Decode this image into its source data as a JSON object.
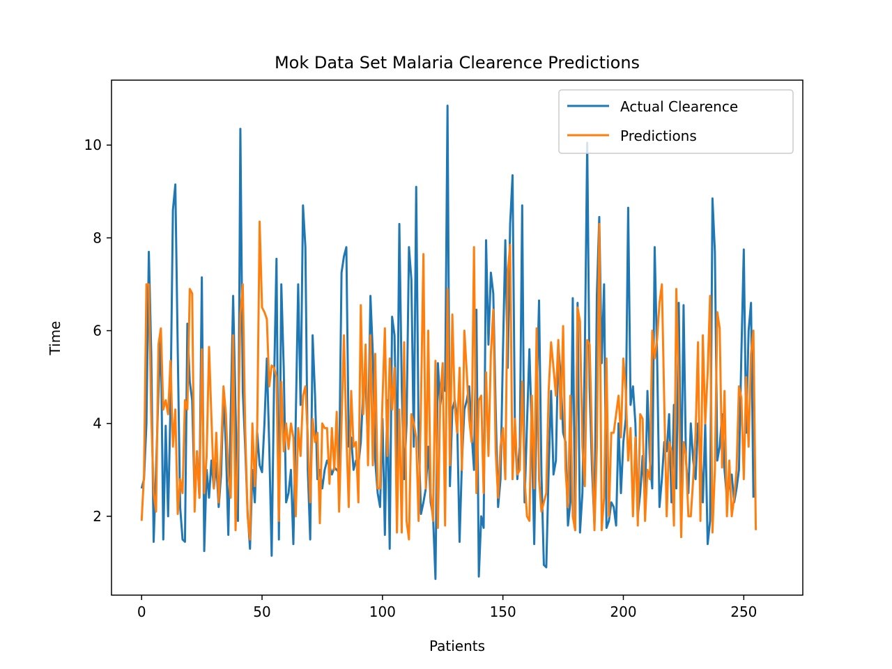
{
  "chart_data": {
    "type": "line",
    "title": "Mok Data Set Malaria Clearence Predictions",
    "xlabel": "Patients",
    "ylabel": "Time",
    "xlim": [
      -12.5,
      274.5
    ],
    "ylim": [
      0.3,
      11.4
    ],
    "xticks": [
      0,
      50,
      100,
      150,
      200,
      250
    ],
    "yticks": [
      2,
      4,
      6,
      8,
      10
    ],
    "grid": false,
    "legend_position": "top-right",
    "series": [
      {
        "name": "Actual Clearence",
        "color": "#1f77b4",
        "x_start": 0,
        "values": [
          2.6,
          2.8,
          4.0,
          7.7,
          5.5,
          1.45,
          3.0,
          4.7,
          5.9,
          1.5,
          3.95,
          2.0,
          4.4,
          8.6,
          9.15,
          5.6,
          2.2,
          1.5,
          1.45,
          6.15,
          4.9,
          4.5,
          2.4,
          3.4,
          2.4,
          7.15,
          1.25,
          3.0,
          2.4,
          3.2,
          2.6,
          3.15,
          2.2,
          2.9,
          4.6,
          3.5,
          1.6,
          4.2,
          6.75,
          4.3,
          1.9,
          10.35,
          4.7,
          3.5,
          2.1,
          1.3,
          3.0,
          2.3,
          3.8,
          3.1,
          2.95,
          4.0,
          5.4,
          3.5,
          1.15,
          4.9,
          7.55,
          1.5,
          7.0,
          5.2,
          2.3,
          2.5,
          3.0,
          1.4,
          4.1,
          7.0,
          4.4,
          8.7,
          7.8,
          3.0,
          1.5,
          5.9,
          4.6,
          2.8,
          3.0,
          2.6,
          3.0,
          3.2,
          3.1,
          2.9,
          3.05,
          3.0,
          2.95,
          7.25,
          7.6,
          7.8,
          3.5,
          3.7,
          3.0,
          3.2,
          3.1,
          3.6,
          4.7,
          4.9,
          3.5,
          6.75,
          5.5,
          3.2,
          2.5,
          2.2,
          4.1,
          1.6,
          4.5,
          1.3,
          6.3,
          5.9,
          3.0,
          8.3,
          4.8,
          2.8,
          4.0,
          7.8,
          7.1,
          3.5,
          9.1,
          3.7,
          2.05,
          2.3,
          2.6,
          3.5,
          2.3,
          2.0,
          0.65,
          5.3,
          4.4,
          4.8,
          4.7,
          10.85,
          2.65,
          4.3,
          4.5,
          4.1,
          1.45,
          3.2,
          4.3,
          4.5,
          4.8,
          3.8,
          3.0,
          6.45,
          0.7,
          2.0,
          1.75,
          7.95,
          5.7,
          7.25,
          6.8,
          4.3,
          2.2,
          2.8,
          5.5,
          7.95,
          5.2,
          8.3,
          9.35,
          3.8,
          2.8,
          3.5,
          8.7,
          2.3,
          4.0,
          5.6,
          3.8,
          1.4,
          4.5,
          6.65,
          2.9,
          0.95,
          0.9,
          3.0,
          4.7,
          2.9,
          3.2,
          5.7,
          5.0,
          3.8,
          3.6,
          1.8,
          2.3,
          6.7,
          1.7,
          6.6,
          1.65,
          2.5,
          5.5,
          10.05,
          4.75,
          3.0,
          1.8,
          6.75,
          8.45,
          5.3,
          7.0,
          1.75,
          1.9,
          2.3,
          2.2,
          1.8,
          4.0,
          2.5,
          3.6,
          4.1,
          8.65,
          4.4,
          4.8,
          4.0,
          2.0,
          2.5,
          3.3,
          2.3,
          4.7,
          3.2,
          2.6,
          7.8,
          5.5,
          2.2,
          2.8,
          3.6,
          3.4,
          4.2,
          2.3,
          4.4,
          2.6,
          6.6,
          2.5,
          6.55,
          3.2,
          2.5,
          4.0,
          3.2,
          2.8,
          4.0,
          3.5,
          2.3,
          4.0,
          1.4,
          1.9,
          8.85,
          7.7,
          3.2,
          3.5,
          4.2,
          3.0,
          2.4,
          2.7,
          2.9,
          2.3,
          2.6,
          3.0,
          5.5,
          7.75,
          3.8,
          6.0,
          6.6,
          2.4
        ]
      },
      {
        "name": "Predictions",
        "color": "#ff7f0e",
        "x_start": 0,
        "values": [
          1.9,
          2.9,
          7.0,
          7.0,
          4.2,
          2.5,
          2.1,
          5.7,
          6.05,
          4.3,
          4.5,
          4.2,
          5.35,
          3.5,
          4.3,
          2.05,
          2.8,
          2.5,
          4.5,
          4.3,
          6.9,
          6.8,
          2.1,
          3.4,
          2.4,
          5.6,
          2.5,
          3.3,
          5.65,
          4.1,
          2.6,
          3.8,
          2.3,
          3.4,
          4.8,
          4.2,
          2.9,
          2.4,
          5.9,
          1.7,
          3.5,
          6.35,
          7.0,
          3.9,
          2.0,
          1.5,
          4.0,
          2.65,
          3.9,
          8.35,
          6.5,
          6.4,
          6.25,
          4.8,
          5.25,
          5.2,
          5.0,
          1.9,
          4.9,
          3.4,
          4.0,
          3.45,
          4.0,
          3.7,
          2.0,
          3.9,
          3.3,
          4.6,
          4.8,
          3.7,
          2.3,
          4.1,
          3.6,
          3.8,
          1.85,
          4.0,
          3.9,
          3.9,
          2.7,
          3.9,
          3.0,
          4.25,
          2.1,
          4.0,
          5.9,
          3.8,
          2.2,
          4.7,
          3.5,
          3.6,
          2.3,
          6.55,
          4.2,
          5.7,
          3.1,
          5.9,
          3.1,
          5.5,
          2.6,
          2.6,
          4.5,
          6.05,
          3.3,
          5.4,
          4.3,
          5.2,
          1.65,
          4.3,
          1.65,
          5.75,
          1.9,
          1.5,
          4.2,
          4.0,
          3.7,
          1.9,
          4.5,
          7.65,
          2.6,
          6.0,
          2.5,
          1.9,
          5.35,
          1.75,
          4.6,
          5.3,
          1.8,
          6.9,
          3.1,
          6.35,
          4.4,
          3.8,
          5.2,
          3.0,
          6.0,
          5.1,
          4.1,
          3.6,
          7.8,
          2.5,
          4.5,
          4.6,
          2.5,
          5.1,
          3.3,
          5.5,
          6.45,
          3.4,
          2.4,
          3.5,
          3.9,
          2.8,
          7.25,
          7.85,
          2.8,
          4.1,
          2.9,
          3.0,
          4.9,
          2.8,
          2.0,
          1.9,
          4.6,
          2.6,
          6.05,
          2.8,
          2.1,
          2.3,
          2.5,
          4.7,
          5.75,
          5.2,
          4.6,
          5.8,
          4.1,
          6.1,
          3.0,
          2.2,
          4.6,
          2.0,
          1.7,
          6.5,
          6.2,
          3.5,
          2.65,
          5.8,
          5.7,
          3.6,
          1.7,
          3.5,
          8.3,
          1.7,
          2.4,
          5.4,
          2.0,
          3.8,
          3.8,
          4.2,
          4.6,
          3.7,
          5.4,
          4.7,
          3.2,
          3.9,
          2.0,
          3.7,
          1.8,
          4.2,
          4.1,
          1.9,
          3.0,
          2.8,
          6.0,
          5.4,
          5.8,
          6.6,
          7.0,
          4.4,
          2.0,
          3.6,
          3.4,
          1.8,
          6.9,
          4.8,
          1.55,
          3.6,
          3.3,
          2.0,
          2.0,
          2.8,
          3.8,
          5.75,
          1.9,
          5.9,
          4.0,
          5.1,
          6.75,
          1.65,
          3.0,
          6.4,
          6.05,
          3.05,
          4.7,
          2.0,
          3.2,
          2.0,
          2.4,
          3.0,
          4.8,
          4.55,
          2.8,
          5.0,
          3.5,
          5.5,
          6.0,
          1.7
        ]
      }
    ]
  }
}
